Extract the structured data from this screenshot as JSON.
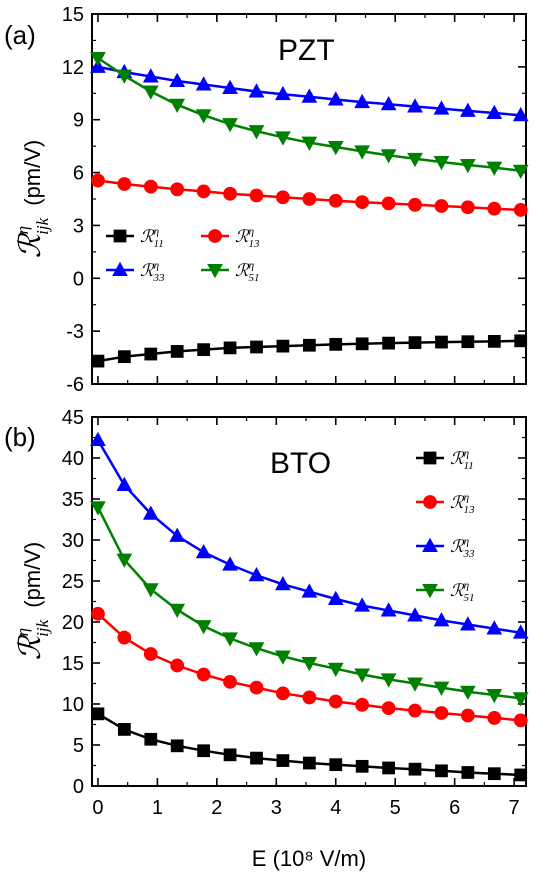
{
  "chart_data": [
    {
      "type": "line",
      "panel_label": "(a)",
      "material": "PZT",
      "xlabel": "",
      "ylabel": "ℛηijk (pm/V)",
      "xlim": [
        -0.1,
        7.2
      ],
      "ylim": [
        -6,
        15
      ],
      "xticks": [
        0,
        1,
        2,
        3,
        4,
        5,
        6,
        7
      ],
      "yticks": [
        -6,
        -3,
        0,
        3,
        6,
        9,
        12,
        15
      ],
      "ytick_labels": [
        "-6",
        "-3",
        "0",
        "3",
        "6",
        "9",
        "12",
        "15"
      ],
      "show_x_tick_labels": false,
      "legend_position": "middle-left",
      "legend_columns": 2,
      "grid": false,
      "x": [
        0,
        0.444,
        0.889,
        1.333,
        1.778,
        2.222,
        2.667,
        3.111,
        3.556,
        4.0,
        4.444,
        4.889,
        5.333,
        5.778,
        6.222,
        6.667,
        7.111
      ],
      "series": [
        {
          "name": "ℛη11",
          "color": "#000000",
          "marker": "square",
          "values": [
            -4.7,
            -4.45,
            -4.3,
            -4.15,
            -4.05,
            -3.95,
            -3.9,
            -3.85,
            -3.8,
            -3.75,
            -3.72,
            -3.68,
            -3.65,
            -3.62,
            -3.6,
            -3.58,
            -3.55
          ]
        },
        {
          "name": "ℛη13",
          "color": "#ff0000",
          "marker": "circle",
          "values": [
            5.55,
            5.35,
            5.2,
            5.05,
            4.93,
            4.8,
            4.7,
            4.6,
            4.5,
            4.4,
            4.32,
            4.25,
            4.17,
            4.1,
            4.03,
            3.95,
            3.88
          ]
        },
        {
          "name": "ℛη33",
          "color": "#0000ff",
          "marker": "triangle-up",
          "values": [
            12.0,
            11.7,
            11.45,
            11.2,
            11.0,
            10.8,
            10.6,
            10.45,
            10.3,
            10.15,
            10.0,
            9.88,
            9.75,
            9.63,
            9.5,
            9.38,
            9.25
          ]
        },
        {
          "name": "ℛη51",
          "color": "#008000",
          "marker": "triangle-down",
          "values": [
            12.5,
            11.5,
            10.6,
            9.85,
            9.25,
            8.75,
            8.35,
            8.0,
            7.7,
            7.45,
            7.2,
            6.98,
            6.78,
            6.6,
            6.43,
            6.28,
            6.1
          ]
        }
      ]
    },
    {
      "type": "line",
      "panel_label": "(b)",
      "material": "BTO",
      "xlabel": "E (10⁸ V/m)",
      "ylabel": "ℛηijk (pm/V)",
      "xlim": [
        -0.1,
        7.2
      ],
      "ylim": [
        0,
        45
      ],
      "xticks": [
        0,
        1,
        2,
        3,
        4,
        5,
        6,
        7
      ],
      "yticks": [
        0,
        5,
        10,
        15,
        20,
        25,
        30,
        35,
        40,
        45
      ],
      "ytick_labels": [
        "0",
        "5",
        "10",
        "15",
        "20",
        "25",
        "30",
        "35",
        "40",
        "45"
      ],
      "show_x_tick_labels": true,
      "legend_position": "top-right",
      "legend_columns": 1,
      "grid": false,
      "x": [
        0,
        0.444,
        0.889,
        1.333,
        1.778,
        2.222,
        2.667,
        3.111,
        3.556,
        4.0,
        4.444,
        4.889,
        5.333,
        5.778,
        6.222,
        6.667,
        7.111
      ],
      "series": [
        {
          "name": "ℛη11",
          "color": "#000000",
          "marker": "square",
          "values": [
            8.8,
            6.9,
            5.7,
            4.9,
            4.3,
            3.8,
            3.4,
            3.1,
            2.8,
            2.6,
            2.4,
            2.2,
            2.05,
            1.85,
            1.65,
            1.5,
            1.35
          ]
        },
        {
          "name": "ℛη13",
          "color": "#ff0000",
          "marker": "circle",
          "values": [
            21.0,
            18.1,
            16.1,
            14.7,
            13.6,
            12.7,
            12.0,
            11.3,
            10.8,
            10.3,
            9.9,
            9.5,
            9.2,
            8.9,
            8.6,
            8.3,
            8.0
          ]
        },
        {
          "name": "ℛη33",
          "color": "#0000ff",
          "marker": "triangle-up",
          "values": [
            42.2,
            36.7,
            33.2,
            30.5,
            28.5,
            27.0,
            25.7,
            24.6,
            23.7,
            22.8,
            22.0,
            21.4,
            20.8,
            20.2,
            19.7,
            19.2,
            18.7
          ]
        },
        {
          "name": "ℛη51",
          "color": "#008000",
          "marker": "triangle-down",
          "values": [
            34.0,
            27.6,
            24.0,
            21.5,
            19.5,
            18.0,
            16.8,
            15.8,
            15.0,
            14.3,
            13.6,
            13.0,
            12.5,
            12.0,
            11.5,
            11.1,
            10.7
          ]
        }
      ]
    }
  ]
}
